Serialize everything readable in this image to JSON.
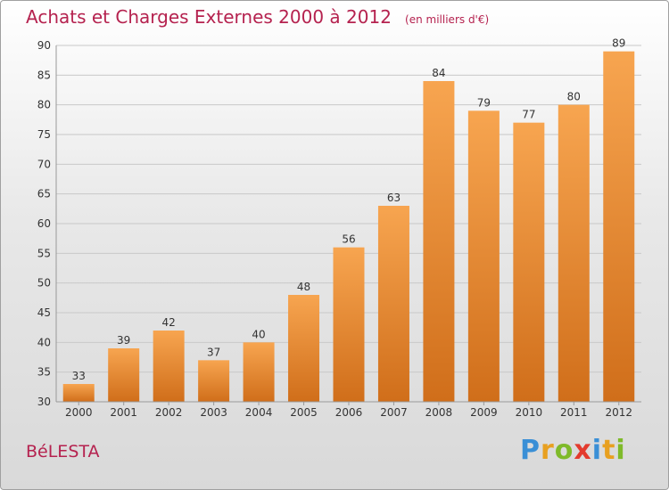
{
  "title": "Achats et Charges Externes 2000 à 2012",
  "subtitle": "(en milliers d'€)",
  "commune": "BéLESTA",
  "logo": [
    "P",
    "r",
    "o",
    "x",
    "i",
    "t",
    "i"
  ],
  "colors": {
    "bar_top": "#f7a550",
    "bar_bottom": "#d06e1a",
    "title": "#b5224f",
    "grid": "#c8c8c8",
    "axis_text": "#333333"
  },
  "chart_data": {
    "type": "bar",
    "title": "Achats et Charges Externes 2000 à 2012",
    "categories": [
      "2000",
      "2001",
      "2002",
      "2003",
      "2004",
      "2005",
      "2006",
      "2007",
      "2008",
      "2009",
      "2010",
      "2011",
      "2012"
    ],
    "values": [
      33,
      39,
      42,
      37,
      40,
      48,
      56,
      63,
      84,
      79,
      77,
      80,
      89
    ],
    "ylim": [
      30,
      90
    ],
    "yticks": [
      30,
      35,
      40,
      45,
      50,
      55,
      60,
      65,
      70,
      75,
      80,
      85,
      90
    ],
    "grid": true,
    "xlabel": "",
    "ylabel": ""
  }
}
